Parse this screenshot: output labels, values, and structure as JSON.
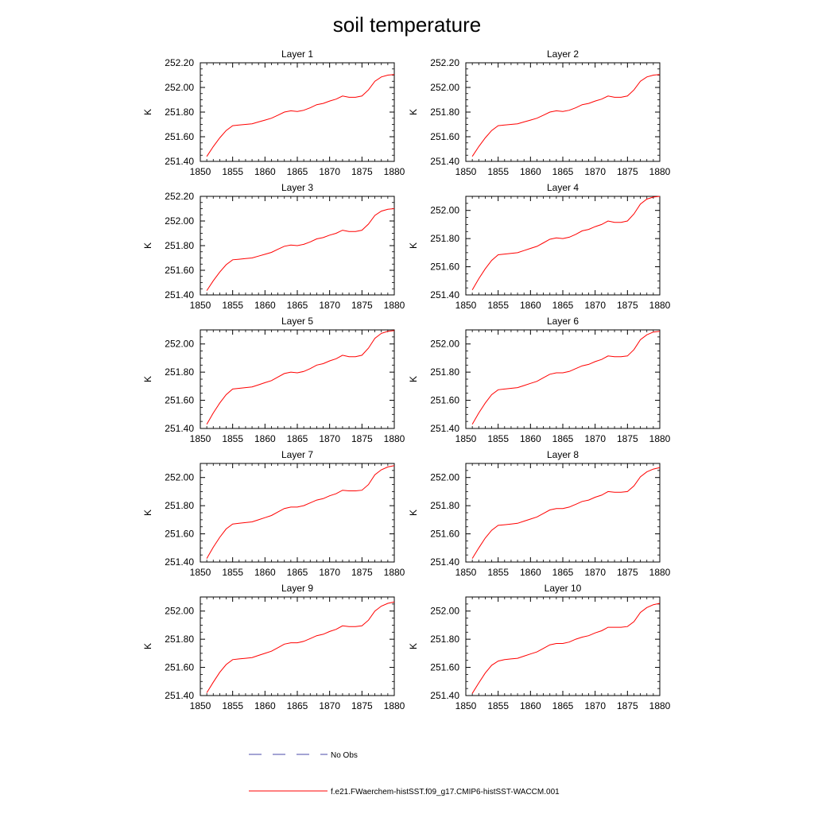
{
  "title": "soil temperature",
  "chart_data": {
    "type": "line",
    "xlabel": "",
    "ylabel": "K",
    "x": [
      1851,
      1852,
      1853,
      1854,
      1855,
      1856,
      1857,
      1858,
      1859,
      1860,
      1861,
      1862,
      1863,
      1864,
      1865,
      1866,
      1867,
      1868,
      1869,
      1870,
      1871,
      1872,
      1873,
      1874,
      1875,
      1876,
      1877,
      1878,
      1879,
      1880
    ],
    "xlim": [
      1850,
      1880
    ],
    "xticks": [
      1850,
      1855,
      1860,
      1865,
      1870,
      1875,
      1880
    ],
    "xtick_labels": [
      "1850",
      "1855",
      "1860",
      "1865",
      "1870",
      "1875",
      "1880"
    ],
    "panels": [
      {
        "title": "Layer 1",
        "ylim": [
          251.4,
          252.2
        ],
        "yticks": [
          251.4,
          251.6,
          251.8,
          252.0,
          252.2
        ],
        "ytick_labels": [
          "251.40",
          "251.60",
          "251.80",
          "252.00",
          "252.20"
        ],
        "values": [
          251.44,
          251.52,
          251.59,
          251.65,
          251.69,
          251.695,
          251.7,
          251.705,
          251.72,
          251.735,
          251.75,
          251.775,
          251.8,
          251.81,
          251.805,
          251.815,
          251.835,
          251.86,
          251.87,
          251.89,
          251.905,
          251.93,
          251.92,
          251.92,
          251.93,
          251.98,
          252.05,
          252.085,
          252.1,
          252.105
        ]
      },
      {
        "title": "Layer 2",
        "ylim": [
          251.4,
          252.2
        ],
        "yticks": [
          251.4,
          251.6,
          251.8,
          252.0,
          252.2
        ],
        "ytick_labels": [
          "251.40",
          "251.60",
          "251.80",
          "252.00",
          "252.20"
        ],
        "values": [
          251.44,
          251.52,
          251.59,
          251.65,
          251.69,
          251.695,
          251.7,
          251.705,
          251.72,
          251.735,
          251.75,
          251.775,
          251.8,
          251.81,
          251.805,
          251.815,
          251.835,
          251.86,
          251.87,
          251.89,
          251.905,
          251.93,
          251.92,
          251.92,
          251.93,
          251.98,
          252.05,
          252.085,
          252.1,
          252.105
        ]
      },
      {
        "title": "Layer 3",
        "ylim": [
          251.4,
          252.2
        ],
        "yticks": [
          251.4,
          251.6,
          251.8,
          252.0,
          252.2
        ],
        "ytick_labels": [
          "251.40",
          "251.60",
          "251.80",
          "252.00",
          "252.20"
        ],
        "values": [
          251.435,
          251.515,
          251.585,
          251.645,
          251.685,
          251.69,
          251.695,
          251.7,
          251.715,
          251.73,
          251.745,
          251.77,
          251.795,
          251.805,
          251.8,
          251.81,
          251.83,
          251.855,
          251.865,
          251.885,
          251.9,
          251.925,
          251.915,
          251.915,
          251.925,
          251.975,
          252.045,
          252.08,
          252.095,
          252.1
        ]
      },
      {
        "title": "Layer 4",
        "ylim": [
          251.4,
          252.1
        ],
        "yticks": [
          251.4,
          251.6,
          251.8,
          252.0
        ],
        "ytick_labels": [
          "251.40",
          "251.60",
          "251.80",
          "252.00"
        ],
        "values": [
          251.435,
          251.515,
          251.585,
          251.645,
          251.685,
          251.69,
          251.695,
          251.7,
          251.715,
          251.73,
          251.745,
          251.77,
          251.795,
          251.805,
          251.8,
          251.81,
          251.83,
          251.855,
          251.865,
          251.885,
          251.9,
          251.925,
          251.915,
          251.915,
          251.925,
          251.975,
          252.045,
          252.08,
          252.095,
          252.1
        ]
      },
      {
        "title": "Layer 5",
        "ylim": [
          251.4,
          252.1
        ],
        "yticks": [
          251.4,
          251.6,
          251.8,
          252.0
        ],
        "ytick_labels": [
          "251.40",
          "251.60",
          "251.80",
          "252.00"
        ],
        "values": [
          251.43,
          251.51,
          251.58,
          251.64,
          251.68,
          251.685,
          251.69,
          251.695,
          251.71,
          251.725,
          251.74,
          251.765,
          251.79,
          251.8,
          251.795,
          251.805,
          251.825,
          251.85,
          251.86,
          251.88,
          251.895,
          251.92,
          251.91,
          251.91,
          251.92,
          251.97,
          252.04,
          252.075,
          252.09,
          252.095
        ]
      },
      {
        "title": "Layer 6",
        "ylim": [
          251.4,
          252.1
        ],
        "yticks": [
          251.4,
          251.6,
          251.8,
          252.0
        ],
        "ytick_labels": [
          "251.40",
          "251.60",
          "251.80",
          "252.00"
        ],
        "values": [
          251.43,
          251.51,
          251.58,
          251.64,
          251.675,
          251.68,
          251.685,
          251.69,
          251.705,
          251.72,
          251.735,
          251.76,
          251.785,
          251.795,
          251.795,
          251.805,
          251.825,
          251.845,
          251.855,
          251.875,
          251.89,
          251.915,
          251.91,
          251.91,
          251.915,
          251.96,
          252.03,
          252.065,
          252.085,
          252.09
        ]
      },
      {
        "title": "Layer 7",
        "ylim": [
          251.4,
          252.1
        ],
        "yticks": [
          251.4,
          251.6,
          251.8,
          252.0
        ],
        "ytick_labels": [
          "251.40",
          "251.60",
          "251.80",
          "252.00"
        ],
        "values": [
          251.425,
          251.505,
          251.575,
          251.635,
          251.67,
          251.675,
          251.68,
          251.685,
          251.7,
          251.715,
          251.73,
          251.755,
          251.78,
          251.79,
          251.79,
          251.8,
          251.82,
          251.84,
          251.85,
          251.87,
          251.885,
          251.91,
          251.905,
          251.905,
          251.91,
          251.95,
          252.02,
          252.055,
          252.075,
          252.085
        ]
      },
      {
        "title": "Layer 8",
        "ylim": [
          251.4,
          252.1
        ],
        "yticks": [
          251.4,
          251.6,
          251.8,
          252.0
        ],
        "ytick_labels": [
          "251.40",
          "251.60",
          "251.80",
          "252.00"
        ],
        "values": [
          251.425,
          251.5,
          251.57,
          251.625,
          251.66,
          251.665,
          251.67,
          251.675,
          251.69,
          251.705,
          251.72,
          251.745,
          251.77,
          251.78,
          251.78,
          251.79,
          251.81,
          251.83,
          251.84,
          251.86,
          251.875,
          251.9,
          251.895,
          251.895,
          251.9,
          251.94,
          252.005,
          252.04,
          252.06,
          252.07
        ]
      },
      {
        "title": "Layer 9",
        "ylim": [
          251.4,
          252.1
        ],
        "yticks": [
          251.4,
          251.6,
          251.8,
          252.0
        ],
        "ytick_labels": [
          "251.40",
          "251.60",
          "251.80",
          "252.00"
        ],
        "values": [
          251.42,
          251.495,
          251.565,
          251.62,
          251.655,
          251.66,
          251.665,
          251.67,
          251.685,
          251.7,
          251.715,
          251.74,
          251.765,
          251.775,
          251.775,
          251.785,
          251.805,
          251.825,
          251.835,
          251.855,
          251.87,
          251.895,
          251.89,
          251.89,
          251.895,
          251.935,
          252.0,
          252.035,
          252.055,
          252.065
        ]
      },
      {
        "title": "Layer 10",
        "ylim": [
          251.4,
          252.1
        ],
        "yticks": [
          251.4,
          251.6,
          251.8,
          252.0
        ],
        "ytick_labels": [
          "251.40",
          "251.60",
          "251.80",
          "252.00"
        ],
        "values": [
          251.415,
          251.49,
          251.56,
          251.615,
          251.645,
          251.655,
          251.66,
          251.665,
          251.68,
          251.695,
          251.71,
          251.735,
          251.76,
          251.77,
          251.77,
          251.78,
          251.8,
          251.815,
          251.825,
          251.845,
          251.86,
          251.885,
          251.885,
          251.885,
          251.89,
          251.925,
          251.99,
          252.025,
          252.045,
          252.055
        ]
      }
    ],
    "legend": {
      "placement": "bottom",
      "entries": [
        {
          "label": "No Obs",
          "color": "#4a4aa8",
          "style": "dashed"
        },
        {
          "label": "f.e21.FWaerchem-histSST.f09_g17.CMIP6-histSST-WACCM.001",
          "color": "#ff0000",
          "style": "solid"
        }
      ]
    },
    "colors": {
      "series": "#ff0000",
      "obs": "#4a4aa8",
      "axes": "#000000"
    }
  }
}
